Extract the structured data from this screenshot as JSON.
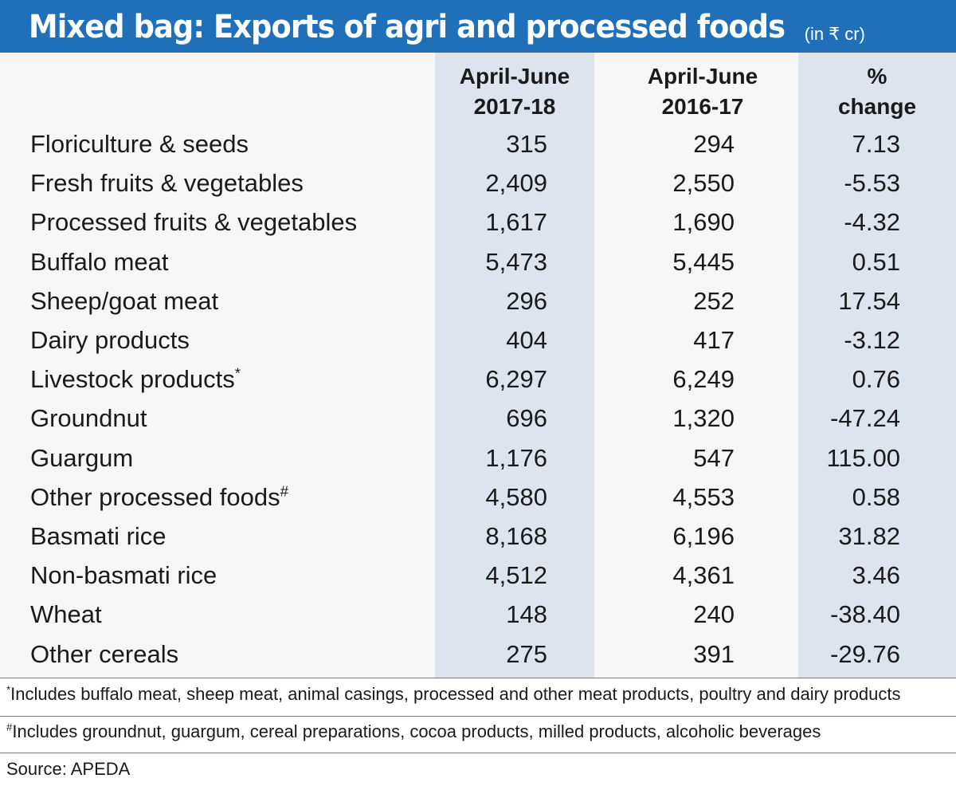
{
  "title": {
    "main": "Mixed bag: Exports of agri and processed foods",
    "unit": "(in ₹ cr)"
  },
  "chart_data": {
    "type": "table",
    "title": "Mixed bag: Exports of agri and processed foods",
    "unit": "(in ₹ cr)",
    "columns": [
      {
        "line1": "April-June",
        "line2": "2017-18"
      },
      {
        "line1": "April-June",
        "line2": "2016-17"
      },
      {
        "line1": "%",
        "line2": "change"
      }
    ],
    "rows": [
      {
        "label": "Floriculture & seeds",
        "mark": "",
        "v2017": "315",
        "v2016": "294",
        "change": "7.13"
      },
      {
        "label": "Fresh fruits & vegetables",
        "mark": "",
        "v2017": "2,409",
        "v2016": "2,550",
        "change": "-5.53"
      },
      {
        "label": "Processed fruits & vegetables",
        "mark": "",
        "v2017": "1,617",
        "v2016": "1,690",
        "change": "-4.32"
      },
      {
        "label": "Buffalo meat",
        "mark": "",
        "v2017": "5,473",
        "v2016": "5,445",
        "change": "0.51"
      },
      {
        "label": "Sheep/goat meat",
        "mark": "",
        "v2017": "296",
        "v2016": "252",
        "change": "17.54"
      },
      {
        "label": "Dairy products",
        "mark": "",
        "v2017": "404",
        "v2016": "417",
        "change": "-3.12"
      },
      {
        "label": "Livestock products",
        "mark": "*",
        "v2017": "6,297",
        "v2016": "6,249",
        "change": "0.76"
      },
      {
        "label": "Groundnut",
        "mark": "",
        "v2017": "696",
        "v2016": "1,320",
        "change": "-47.24"
      },
      {
        "label": "Guargum",
        "mark": "",
        "v2017": "1,176",
        "v2016": "547",
        "change": "115.00"
      },
      {
        "label": "Other processed foods",
        "mark": "#",
        "v2017": "4,580",
        "v2016": "4,553",
        "change": "0.58"
      },
      {
        "label": "Basmati rice",
        "mark": "",
        "v2017": "8,168",
        "v2016": "6,196",
        "change": "31.82"
      },
      {
        "label": "Non-basmati rice",
        "mark": "",
        "v2017": "4,512",
        "v2016": "4,361",
        "change": "3.46"
      },
      {
        "label": "Wheat",
        "mark": "",
        "v2017": "148",
        "v2016": "240",
        "change": "-38.40"
      },
      {
        "label": "Other cereals",
        "mark": "",
        "v2017": "275",
        "v2016": "391",
        "change": "-29.76"
      }
    ],
    "footnotes": [
      {
        "mark": "*",
        "text": "Includes buffalo meat, sheep meat, animal casings, processed and other meat products, poultry and dairy products"
      },
      {
        "mark": "#",
        "text": "Includes groundnut, guargum, cereal preparations, cocoa products, milled products, alcoholic beverages"
      }
    ],
    "source": "Source: APEDA"
  },
  "colors": {
    "title_bar": "#1f6fb9",
    "column_band": "#dde4ee",
    "table_bg": "#f6f6f6"
  }
}
